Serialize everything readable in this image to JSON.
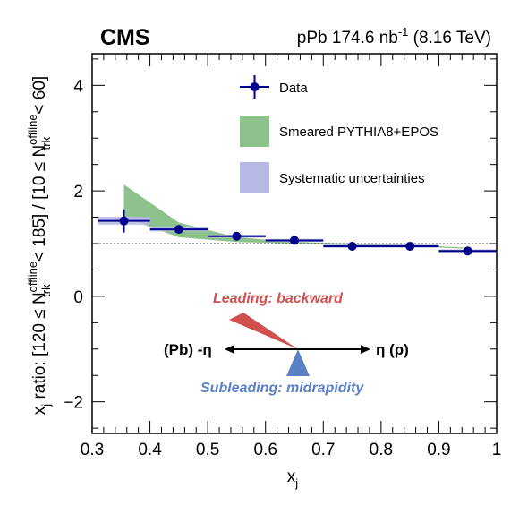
{
  "header": {
    "experiment": "CMS",
    "lumi_prefix": "pPb 174.6 nb",
    "lumi_exp": "-1",
    "lumi_suffix": " (8.16 TeV)"
  },
  "chart_data": {
    "type": "scatter",
    "xlabel": "x",
    "xlabel_sub": "j",
    "ylabel": {
      "p1": "x",
      "p1_sub": "j",
      "p2": " ratio: [120 ≤ N",
      "p2_sup": "offline",
      "p2_sub": "trk",
      "p3": " < 185] / [10 ≤ N",
      "p3_sup": "offline",
      "p3_sub": "trk",
      "p4": " < 60]"
    },
    "xlim": [
      0.3,
      1.0
    ],
    "ylim": [
      -2.6,
      4.6
    ],
    "xticks": [
      "0.3",
      "0.4",
      "0.5",
      "0.6",
      "0.7",
      "0.8",
      "0.9",
      "1"
    ],
    "xtick_values": [
      0.3,
      0.4,
      0.5,
      0.6,
      0.7,
      0.8,
      0.9,
      1.0
    ],
    "yticks": [
      "−2",
      "0",
      "2",
      "4"
    ],
    "ytick_values": [
      -2,
      0,
      2,
      4
    ],
    "reference_line": 1.0,
    "series": [
      {
        "name": "Data",
        "color": "#00008b",
        "points": [
          {
            "x": 0.355,
            "xlo": 0.31,
            "xhi": 0.4,
            "y": 1.43,
            "yerr": 0.22
          },
          {
            "x": 0.45,
            "xlo": 0.4,
            "xhi": 0.5,
            "y": 1.27,
            "yerr": 0.05
          },
          {
            "x": 0.55,
            "xlo": 0.5,
            "xhi": 0.6,
            "y": 1.14,
            "yerr": 0.04
          },
          {
            "x": 0.65,
            "xlo": 0.6,
            "xhi": 0.7,
            "y": 1.06,
            "yerr": 0.04
          },
          {
            "x": 0.75,
            "xlo": 0.7,
            "xhi": 0.8,
            "y": 0.95,
            "yerr": 0.04
          },
          {
            "x": 0.85,
            "xlo": 0.8,
            "xhi": 0.9,
            "y": 0.95,
            "yerr": 0.04
          },
          {
            "x": 0.95,
            "xlo": 0.9,
            "xhi": 1.0,
            "y": 0.86,
            "yerr": 0.05
          }
        ]
      },
      {
        "name": "Smeared PYTHIA8+EPOS",
        "color": "#8dc28d",
        "band_x": [
          0.355,
          0.45,
          0.55,
          0.65,
          0.75,
          0.85,
          0.95
        ],
        "band_lo": [
          1.5,
          1.12,
          1.03,
          1.0,
          0.97,
          0.95,
          0.9
        ],
        "band_hi": [
          2.12,
          1.4,
          1.12,
          1.03,
          1.0,
          0.98,
          0.92
        ]
      },
      {
        "name": "Systematic uncertainties",
        "color": "#b8b8e4",
        "boxes": [
          {
            "xlo": 0.31,
            "xhi": 0.4,
            "lo": 1.36,
            "hi": 1.51
          },
          {
            "xlo": 0.4,
            "xhi": 0.5,
            "lo": 1.23,
            "hi": 1.31
          },
          {
            "xlo": 0.5,
            "xhi": 0.6,
            "lo": 1.11,
            "hi": 1.17
          },
          {
            "xlo": 0.6,
            "xhi": 0.7,
            "lo": 1.03,
            "hi": 1.09
          },
          {
            "xlo": 0.7,
            "xhi": 0.8,
            "lo": 0.92,
            "hi": 0.98
          },
          {
            "xlo": 0.8,
            "xhi": 0.9,
            "lo": 0.92,
            "hi": 0.98
          },
          {
            "xlo": 0.9,
            "xhi": 1.0,
            "lo": 0.83,
            "hi": 0.89
          }
        ]
      }
    ],
    "legend": [
      "Data",
      "Smeared PYTHIA8+EPOS",
      "Systematic uncertainties"
    ],
    "annotations": {
      "leading": "Leading: backward",
      "leading_color": "#d05050",
      "subleading": "Subleading: midrapidity",
      "subleading_color": "#5a80c8",
      "left_label": "(Pb) -η",
      "right_label": "η (p)"
    }
  }
}
